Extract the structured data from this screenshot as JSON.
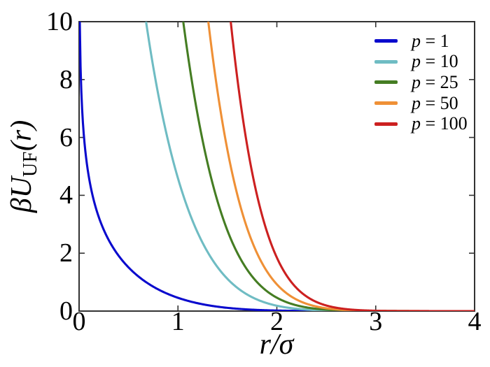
{
  "figure": {
    "background": "#ffffff",
    "frame_color": "#333333",
    "tick_color": "#333333",
    "text_color": "#000000"
  },
  "chart_data": {
    "type": "line",
    "title": "",
    "xlabel": "r/σ",
    "ylabel": "βU_UF(r)",
    "ylabel_parts": {
      "prefix": "βU",
      "subscript": "UF",
      "suffix": "(r)"
    },
    "xlim": [
      0,
      4
    ],
    "ylim": [
      0,
      10
    ],
    "x_ticks": [
      0,
      1,
      2,
      3,
      4
    ],
    "y_ticks": [
      0,
      2,
      4,
      6,
      8,
      10
    ],
    "grid": false,
    "legend_position": "upper-right",
    "series": [
      {
        "symbol": "p",
        "value": "1",
        "label": "p = 1",
        "p": 1,
        "color": "#0a0acd",
        "sample_points": [
          [
            0.007,
            10
          ],
          [
            0.018,
            8
          ],
          [
            0.05,
            6
          ],
          [
            0.136,
            4
          ],
          [
            0.381,
            2
          ],
          [
            0.677,
            1
          ],
          [
            0.966,
            0.5
          ],
          [
            1.307,
            0.2
          ],
          [
            1.534,
            0.1
          ],
          [
            2.147,
            0.01
          ],
          [
            4.0,
            0.0
          ]
        ]
      },
      {
        "symbol": "p",
        "value": "10",
        "label": "p = 10",
        "p": 10,
        "color": "#6fbcc3",
        "sample_points": [
          [
            0.677,
            10
          ],
          [
            0.772,
            8
          ],
          [
            0.892,
            6
          ],
          [
            1.053,
            4
          ],
          [
            1.307,
            2
          ],
          [
            1.534,
            1
          ],
          [
            1.738,
            0.5
          ],
          [
            1.98,
            0.2
          ],
          [
            2.147,
            0.1
          ],
          [
            2.628,
            0.01
          ],
          [
            4.0,
            0.0
          ]
        ]
      },
      {
        "symbol": "p",
        "value": "25",
        "label": "p = 25",
        "p": 25,
        "color": "#457d23",
        "sample_points": [
          [
            1.053,
            10
          ],
          [
            1.138,
            8
          ],
          [
            1.243,
            6
          ],
          [
            1.382,
            4
          ],
          [
            1.602,
            2
          ],
          [
            1.8,
            1
          ],
          [
            1.98,
            0.5
          ],
          [
            2.198,
            0.2
          ],
          [
            2.35,
            0.1
          ],
          [
            2.797,
            0.01
          ],
          [
            4.0,
            0.0
          ]
        ]
      },
      {
        "symbol": "p",
        "value": "50",
        "label": "p = 50",
        "p": 50,
        "color": "#ef9036",
        "sample_points": [
          [
            1.307,
            10
          ],
          [
            1.383,
            8
          ],
          [
            1.476,
            6
          ],
          [
            1.602,
            4
          ],
          [
            1.8,
            2
          ],
          [
            1.98,
            1
          ],
          [
            2.147,
            0.5
          ],
          [
            2.35,
            0.2
          ],
          [
            2.493,
            0.1
          ],
          [
            2.918,
            0.01
          ],
          [
            4.0,
            0.0
          ]
        ]
      },
      {
        "symbol": "p",
        "value": "100",
        "label": "p = 100",
        "p": 100,
        "color": "#cc2020",
        "sample_points": [
          [
            1.534,
            10
          ],
          [
            1.602,
            8
          ],
          [
            1.686,
            6
          ],
          [
            1.8,
            4
          ],
          [
            1.98,
            2
          ],
          [
            2.147,
            1
          ],
          [
            2.302,
            0.5
          ],
          [
            2.493,
            0.2
          ],
          [
            2.628,
            0.1
          ],
          [
            3.035,
            0.01
          ],
          [
            4.0,
            0.0
          ]
        ]
      }
    ]
  }
}
